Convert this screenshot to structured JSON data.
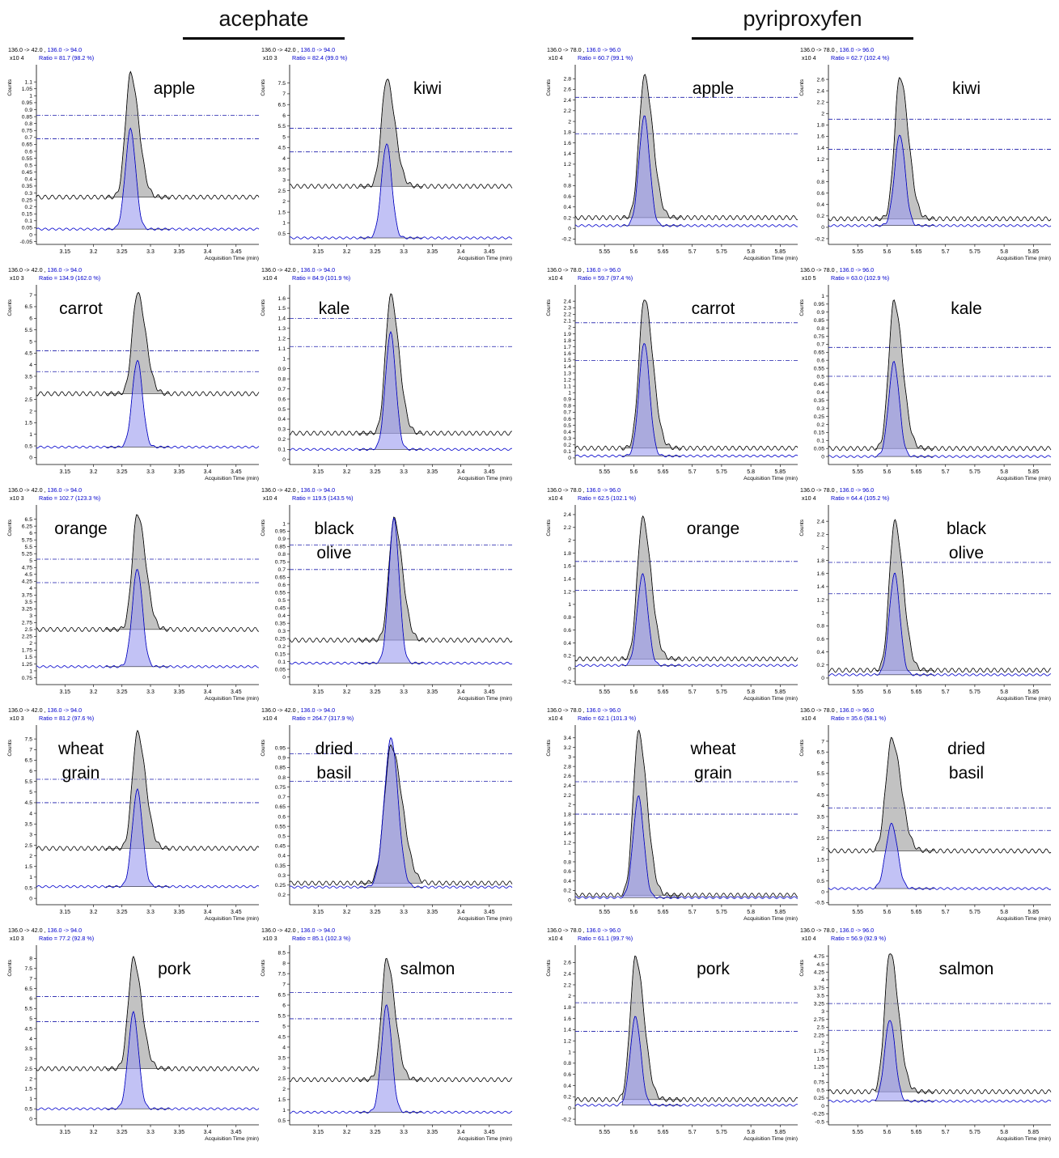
{
  "groups": [
    {
      "title": "acephate"
    },
    {
      "title": "pyriproxyfen"
    }
  ],
  "common": {
    "counts_label": "Counts",
    "xlabel": "Acquisition Time (min)",
    "colors": {
      "quant": "#000000",
      "qual": "#0000cc",
      "peak_fill": "#9a9a9a",
      "qual_fill": "#9999ee",
      "ref_line": "#1a1aaa"
    }
  },
  "chart_data": [
    {
      "type": "line",
      "group": "acephate",
      "sample": "apple",
      "header": "136.0 -> 42.0 , 136.0 -> 94.0",
      "ratio": "Ratio = 81.7 (98.2 %)",
      "multiplier": "x10 4",
      "xlim": [
        3.1,
        3.49
      ],
      "xticks": [
        3.15,
        3.2,
        3.25,
        3.3,
        3.35,
        3.4,
        3.45
      ],
      "ylim": [
        -0.07,
        1.2
      ],
      "yticks": [
        "-0.05",
        "0",
        "0.05",
        "0.1",
        "0.15",
        "0.2",
        "0.25",
        "0.3",
        "0.35",
        "0.4",
        "0.45",
        "0.5",
        "0.55",
        "0.6",
        "0.65",
        "0.7",
        "0.75",
        "0.8",
        "0.85",
        "0.9",
        "0.95",
        "1",
        "1.05",
        "1.1"
      ],
      "ref_lines": [
        0.86,
        0.69
      ],
      "peak_rt": 3.265,
      "peak_width": 0.009,
      "peak_top": 1.16,
      "quant_base": 0.27,
      "qual_top": 0.76,
      "qual_base": 0.04,
      "integ": [
        3.222,
        3.333
      ]
    },
    {
      "type": "line",
      "group": "acephate",
      "sample": "kiwi",
      "header": "136.0 -> 42.0 , 136.0 -> 94.0",
      "ratio": "Ratio = 82.4 (99.0 %)",
      "multiplier": "x10 3",
      "xlim": [
        3.1,
        3.49
      ],
      "xticks": [
        3.15,
        3.2,
        3.25,
        3.3,
        3.35,
        3.4,
        3.45
      ],
      "ylim": [
        0,
        8.2
      ],
      "yticks": [
        "0.5",
        "1",
        "1.5",
        "2",
        "2.5",
        "3",
        "3.5",
        "4",
        "4.5",
        "5",
        "5.5",
        "6",
        "6.5",
        "7",
        "7.5"
      ],
      "ref_lines": [
        5.4,
        4.3
      ],
      "peak_rt": 3.27,
      "peak_width": 0.009,
      "peak_top": 7.7,
      "quant_base": 2.7,
      "qual_top": 4.7,
      "qual_base": 0.3,
      "integ": [
        3.222,
        3.333
      ]
    },
    {
      "type": "line",
      "group": "pyriproxyfen",
      "sample": "apple",
      "header": "136.0 -> 78.0 , 136.0 -> 96.0",
      "ratio": "Ratio = 60.7 (99.1 %)",
      "multiplier": "x10 4",
      "xlim": [
        5.5,
        5.88
      ],
      "xticks": [
        5.55,
        5.6,
        5.65,
        5.7,
        5.75,
        5.8,
        5.85
      ],
      "ylim": [
        -0.3,
        3.0
      ],
      "yticks": [
        "-0.2",
        "0",
        "0.2",
        "0.4",
        "0.6",
        "0.8",
        "1",
        "1.2",
        "1.4",
        "1.6",
        "1.8",
        "2",
        "2.2",
        "2.4",
        "2.6",
        "2.8"
      ],
      "ref_lines": [
        2.45,
        1.77
      ],
      "peak_rt": 5.618,
      "peak_width": 0.009,
      "peak_top": 2.85,
      "quant_base": 0.2,
      "qual_top": 2.1,
      "qual_base": 0.05,
      "integ": [
        5.58,
        5.68
      ]
    },
    {
      "type": "line",
      "group": "pyriproxyfen",
      "sample": "kiwi",
      "header": "136.0 -> 78.0 , 136.0 -> 96.0",
      "ratio": "Ratio = 62.7 (102.4 %)",
      "multiplier": "x10 4",
      "xlim": [
        5.5,
        5.88
      ],
      "xticks": [
        5.55,
        5.6,
        5.65,
        5.7,
        5.75,
        5.8,
        5.85
      ],
      "ylim": [
        -0.3,
        2.8
      ],
      "yticks": [
        "-0.2",
        "0",
        "0.2",
        "0.4",
        "0.6",
        "0.8",
        "1",
        "1.2",
        "1.4",
        "1.6",
        "1.8",
        "2",
        "2.2",
        "2.4",
        "2.6"
      ],
      "ref_lines": [
        1.9,
        1.37
      ],
      "peak_rt": 5.622,
      "peak_width": 0.009,
      "peak_top": 2.65,
      "quant_base": 0.15,
      "qual_top": 1.63,
      "qual_base": 0.03,
      "integ": [
        5.58,
        5.68
      ]
    },
    {
      "type": "line",
      "group": "acephate",
      "sample": "carrot",
      "header": "136.0 -> 42.0 , 136.0 -> 94.0",
      "ratio": "Ratio = 134.9 (162.0 %)",
      "multiplier": "x10 3",
      "xlim": [
        3.1,
        3.49
      ],
      "xticks": [
        3.15,
        3.2,
        3.25,
        3.3,
        3.35,
        3.4,
        3.45
      ],
      "ylim": [
        -0.3,
        7.3
      ],
      "yticks": [
        "0",
        "0.5",
        "1",
        "1.5",
        "2",
        "2.5",
        "3",
        "3.5",
        "4",
        "4.5",
        "5",
        "5.5",
        "6",
        "6.5",
        "7"
      ],
      "ref_lines": [
        4.6,
        3.7
      ],
      "peak_rt": 3.277,
      "peak_width": 0.009,
      "peak_top": 7.1,
      "quant_base": 2.75,
      "qual_top": 4.2,
      "qual_base": 0.45,
      "integ": [
        3.222,
        3.333
      ]
    },
    {
      "type": "line",
      "group": "acephate",
      "sample": "kale",
      "header": "136.0 -> 42.0 , 136.0 -> 94.0",
      "ratio": "Ratio = 84.9 (101.9 %)",
      "multiplier": "x10 4",
      "xlim": [
        3.1,
        3.49
      ],
      "xticks": [
        3.15,
        3.2,
        3.25,
        3.3,
        3.35,
        3.4,
        3.45
      ],
      "ylim": [
        -0.05,
        1.7
      ],
      "yticks": [
        "0",
        "0.1",
        "0.2",
        "0.3",
        "0.4",
        "0.5",
        "0.6",
        "0.7",
        "0.8",
        "0.9",
        "1",
        "1.1",
        "1.2",
        "1.3",
        "1.4",
        "1.5",
        "1.6"
      ],
      "ref_lines": [
        1.4,
        1.12
      ],
      "peak_rt": 3.277,
      "peak_width": 0.009,
      "peak_top": 1.63,
      "quant_base": 0.26,
      "qual_top": 1.26,
      "qual_base": 0.1,
      "integ": [
        3.222,
        3.333
      ]
    },
    {
      "type": "line",
      "group": "pyriproxyfen",
      "sample": "carrot",
      "header": "136.0 -> 78.0 , 136.0 -> 96.0",
      "ratio": "Ratio = 59.7 (97.4 %)",
      "multiplier": "x10 4",
      "xlim": [
        5.5,
        5.88
      ],
      "xticks": [
        5.55,
        5.6,
        5.65,
        5.7,
        5.75,
        5.8,
        5.85
      ],
      "ylim": [
        -0.1,
        2.6
      ],
      "yticks": [
        "0",
        "0.1",
        "0.2",
        "0.3",
        "0.4",
        "0.5",
        "0.6",
        "0.7",
        "0.8",
        "0.9",
        "1",
        "1.1",
        "1.2",
        "1.3",
        "1.4",
        "1.5",
        "1.6",
        "1.7",
        "1.8",
        "1.9",
        "2",
        "2.1",
        "2.2",
        "2.3",
        "2.4"
      ],
      "ref_lines": [
        2.07,
        1.49
      ],
      "peak_rt": 5.618,
      "peak_width": 0.009,
      "peak_top": 2.45,
      "quant_base": 0.15,
      "qual_top": 1.77,
      "qual_base": 0.03,
      "integ": [
        5.58,
        5.68
      ]
    },
    {
      "type": "line",
      "group": "pyriproxyfen",
      "sample": "kale",
      "header": "136.0 -> 78.0 , 136.0 -> 96.0",
      "ratio": "Ratio = 63.0 (102.9 %)",
      "multiplier": "x10 5",
      "xlim": [
        5.5,
        5.88
      ],
      "xticks": [
        5.55,
        5.6,
        5.65,
        5.7,
        5.75,
        5.8,
        5.85
      ],
      "ylim": [
        -0.05,
        1.05
      ],
      "yticks": [
        "0",
        "0.05",
        "0.1",
        "0.15",
        "0.2",
        "0.25",
        "0.3",
        "0.35",
        "0.4",
        "0.45",
        "0.5",
        "0.55",
        "0.6",
        "0.65",
        "0.7",
        "0.75",
        "0.8",
        "0.85",
        "0.9",
        "0.95",
        "1"
      ],
      "ref_lines": [
        0.68,
        0.5
      ],
      "peak_rt": 5.612,
      "peak_width": 0.009,
      "peak_top": 0.97,
      "quant_base": 0.05,
      "qual_top": 0.59,
      "qual_base": 0.0,
      "integ": [
        5.58,
        5.68
      ]
    },
    {
      "type": "line",
      "group": "acephate",
      "sample": "orange",
      "header": "136.0 -> 42.0 , 136.0 -> 94.0",
      "ratio": "Ratio = 102.7 (123.3 %)",
      "multiplier": "x10 3",
      "xlim": [
        3.1,
        3.49
      ],
      "xticks": [
        3.15,
        3.2,
        3.25,
        3.3,
        3.35,
        3.4,
        3.45
      ],
      "ylim": [
        0.5,
        6.9
      ],
      "yticks": [
        "0.75",
        "1",
        "1.25",
        "1.5",
        "1.75",
        "2",
        "2.25",
        "2.5",
        "2.75",
        "3",
        "3.25",
        "3.5",
        "3.75",
        "4",
        "4.25",
        "4.5",
        "4.75",
        "5",
        "5.25",
        "5.5",
        "5.75",
        "6",
        "6.25",
        "6.5"
      ],
      "ref_lines": [
        5.05,
        4.2
      ],
      "peak_rt": 3.277,
      "peak_width": 0.009,
      "peak_top": 6.7,
      "quant_base": 2.5,
      "qual_top": 4.7,
      "qual_base": 1.15,
      "integ": [
        3.222,
        3.333
      ]
    },
    {
      "type": "line",
      "group": "acephate",
      "sample": "black olive",
      "header": "136.0 -> 42.0 , 136.0 -> 94.0",
      "ratio": "Ratio = 119.5 (143.5 %)",
      "multiplier": "x10 4",
      "xlim": [
        3.1,
        3.49
      ],
      "xticks": [
        3.15,
        3.2,
        3.25,
        3.3,
        3.35,
        3.4,
        3.45
      ],
      "ylim": [
        -0.05,
        1.1
      ],
      "yticks": [
        "0",
        "0.05",
        "0.1",
        "0.15",
        "0.2",
        "0.25",
        "0.3",
        "0.35",
        "0.4",
        "0.45",
        "0.5",
        "0.55",
        "0.6",
        "0.65",
        "0.7",
        "0.75",
        "0.8",
        "0.85",
        "0.9",
        "0.95",
        "1"
      ],
      "ref_lines": [
        0.86,
        0.7
      ],
      "peak_rt": 3.283,
      "peak_width": 0.009,
      "peak_top": 1.03,
      "quant_base": 0.24,
      "qual_top": 1.03,
      "qual_base": 0.09,
      "integ": [
        3.222,
        3.333
      ]
    },
    {
      "type": "line",
      "group": "pyriproxyfen",
      "sample": "orange",
      "header": "136.0 -> 78.0 , 136.0 -> 96.0",
      "ratio": "Ratio = 62.5 (102.1 %)",
      "multiplier": "x10 4",
      "xlim": [
        5.5,
        5.88
      ],
      "xticks": [
        5.55,
        5.6,
        5.65,
        5.7,
        5.75,
        5.8,
        5.85
      ],
      "ylim": [
        -0.25,
        2.5
      ],
      "yticks": [
        "-0.2",
        "0",
        "0.2",
        "0.4",
        "0.6",
        "0.8",
        "1",
        "1.2",
        "1.4",
        "1.6",
        "1.8",
        "2",
        "2.2",
        "2.4"
      ],
      "ref_lines": [
        1.67,
        1.22
      ],
      "peak_rt": 5.615,
      "peak_width": 0.009,
      "peak_top": 2.35,
      "quant_base": 0.15,
      "qual_top": 1.47,
      "qual_base": 0.05,
      "integ": [
        5.58,
        5.68
      ]
    },
    {
      "type": "line",
      "group": "pyriproxyfen",
      "sample": "black olive",
      "header": "136.0 -> 78.0 , 136.0 -> 96.0",
      "ratio": "Ratio = 64.4 (105.2 %)",
      "multiplier": "x10 4",
      "xlim": [
        5.5,
        5.88
      ],
      "xticks": [
        5.55,
        5.6,
        5.65,
        5.7,
        5.75,
        5.8,
        5.85
      ],
      "ylim": [
        -0.1,
        2.6
      ],
      "yticks": [
        "0",
        "0.2",
        "0.4",
        "0.6",
        "0.8",
        "1",
        "1.2",
        "1.4",
        "1.6",
        "1.8",
        "2",
        "2.2",
        "2.4"
      ],
      "ref_lines": [
        1.77,
        1.29
      ],
      "peak_rt": 5.613,
      "peak_width": 0.009,
      "peak_top": 2.4,
      "quant_base": 0.12,
      "qual_top": 1.6,
      "qual_base": 0.05,
      "integ": [
        5.58,
        5.68
      ]
    },
    {
      "type": "line",
      "group": "acephate",
      "sample": "wheat grain",
      "header": "136.0 -> 42.0 , 136.0 -> 94.0",
      "ratio": "Ratio = 81.2 (97.6 %)",
      "multiplier": "x10 3",
      "xlim": [
        3.1,
        3.49
      ],
      "xticks": [
        3.15,
        3.2,
        3.25,
        3.3,
        3.35,
        3.4,
        3.45
      ],
      "ylim": [
        -0.3,
        8.0
      ],
      "yticks": [
        "0",
        "0.5",
        "1",
        "1.5",
        "2",
        "2.5",
        "3",
        "3.5",
        "4",
        "4.5",
        "5",
        "5.5",
        "6",
        "6.5",
        "7",
        "7.5"
      ],
      "ref_lines": [
        5.6,
        4.5
      ],
      "peak_rt": 3.277,
      "peak_width": 0.009,
      "peak_top": 7.8,
      "quant_base": 2.35,
      "qual_top": 5.1,
      "qual_base": 0.55,
      "integ": [
        3.222,
        3.333
      ]
    },
    {
      "type": "line",
      "group": "acephate",
      "sample": "dried basil",
      "header": "136.0 -> 42.0 , 136.0 -> 94.0",
      "ratio": "Ratio = 264.7 (317.9 %)",
      "multiplier": "x10 4",
      "xlim": [
        3.1,
        3.49
      ],
      "xticks": [
        3.15,
        3.2,
        3.25,
        3.3,
        3.35,
        3.4,
        3.45
      ],
      "ylim": [
        0.15,
        1.05
      ],
      "yticks": [
        "0.2",
        "0.25",
        "0.3",
        "0.35",
        "0.4",
        "0.45",
        "0.5",
        "0.55",
        "0.6",
        "0.65",
        "0.7",
        "0.75",
        "0.8",
        "0.85",
        "0.9",
        "0.95"
      ],
      "ref_lines": [
        0.92,
        0.78
      ],
      "peak_rt": 3.278,
      "peak_width": 0.012,
      "peak_top": 0.96,
      "quant_base": 0.26,
      "qual_top": 1.0,
      "qual_base": 0.24,
      "integ": [
        3.222,
        3.333
      ]
    },
    {
      "type": "line",
      "group": "pyriproxyfen",
      "sample": "wheat grain",
      "header": "136.0 -> 78.0 , 136.0 -> 96.0",
      "ratio": "Ratio = 62.1 (101.3 %)",
      "multiplier": "x10 4",
      "xlim": [
        5.5,
        5.88
      ],
      "xticks": [
        5.55,
        5.6,
        5.65,
        5.7,
        5.75,
        5.8,
        5.85
      ],
      "ylim": [
        -0.1,
        3.6
      ],
      "yticks": [
        "0",
        "0.2",
        "0.4",
        "0.6",
        "0.8",
        "1",
        "1.2",
        "1.4",
        "1.6",
        "1.8",
        "2",
        "2.2",
        "2.4",
        "2.6",
        "2.8",
        "3",
        "3.2",
        "3.4"
      ],
      "ref_lines": [
        2.48,
        1.8
      ],
      "peak_rt": 5.608,
      "peak_width": 0.009,
      "peak_top": 3.52,
      "quant_base": 0.1,
      "qual_top": 2.17,
      "qual_base": 0.05,
      "integ": [
        5.58,
        5.68
      ]
    },
    {
      "type": "line",
      "group": "pyriproxyfen",
      "sample": "dried basil",
      "header": "136.0 -> 78.0 , 136.0 -> 96.0",
      "ratio": "Ratio = 35.6 (58.1 %)",
      "multiplier": "x10 4",
      "xlim": [
        5.5,
        5.88
      ],
      "xticks": [
        5.55,
        5.6,
        5.65,
        5.7,
        5.75,
        5.8,
        5.85
      ],
      "ylim": [
        -0.6,
        7.6
      ],
      "yticks": [
        "-0.5",
        "0",
        "0.5",
        "1",
        "1.5",
        "2",
        "2.5",
        "3",
        "3.5",
        "4",
        "4.5",
        "5",
        "5.5",
        "6",
        "6.5",
        "7"
      ],
      "ref_lines": [
        3.9,
        2.85
      ],
      "peak_rt": 5.608,
      "peak_width": 0.01,
      "peak_top": 7.1,
      "quant_base": 1.9,
      "qual_top": 3.15,
      "qual_base": 0.15,
      "integ": [
        5.58,
        5.68
      ]
    },
    {
      "type": "line",
      "group": "acephate",
      "sample": "pork",
      "header": "136.0 -> 42.0 , 136.0 -> 94.0",
      "ratio": "Ratio = 77.2 (92.8 %)",
      "multiplier": "x10 3",
      "xlim": [
        3.1,
        3.49
      ],
      "xticks": [
        3.15,
        3.2,
        3.25,
        3.3,
        3.35,
        3.4,
        3.45
      ],
      "ylim": [
        -0.3,
        8.5
      ],
      "yticks": [
        "0",
        "0.5",
        "1",
        "1.5",
        "2",
        "2.5",
        "3",
        "3.5",
        "4",
        "4.5",
        "5",
        "5.5",
        "6",
        "6.5",
        "7",
        "7.5",
        "8"
      ],
      "ref_lines": [
        6.1,
        4.85
      ],
      "peak_rt": 3.27,
      "peak_width": 0.009,
      "peak_top": 8.0,
      "quant_base": 2.5,
      "qual_top": 5.3,
      "qual_base": 0.5,
      "integ": [
        3.222,
        3.333
      ]
    },
    {
      "type": "line",
      "group": "acephate",
      "sample": "salmon",
      "header": "136.0 -> 42.0 , 136.0 -> 94.0",
      "ratio": "Ratio = 85.1 (102.3 %)",
      "multiplier": "x10 3",
      "xlim": [
        3.1,
        3.49
      ],
      "xticks": [
        3.15,
        3.2,
        3.25,
        3.3,
        3.35,
        3.4,
        3.45
      ],
      "ylim": [
        0.3,
        8.7
      ],
      "yticks": [
        "0.5",
        "1",
        "1.5",
        "2",
        "2.5",
        "3",
        "3.5",
        "4",
        "4.5",
        "5",
        "5.5",
        "6",
        "6.5",
        "7",
        "7.5",
        "8",
        "8.5"
      ],
      "ref_lines": [
        6.6,
        5.35
      ],
      "peak_rt": 3.27,
      "peak_width": 0.009,
      "peak_top": 8.2,
      "quant_base": 2.45,
      "qual_top": 6.0,
      "qual_base": 0.9,
      "integ": [
        3.222,
        3.333
      ]
    },
    {
      "type": "line",
      "group": "pyriproxyfen",
      "sample": "pork",
      "header": "136.0 -> 78.0 , 136.0 -> 96.0",
      "ratio": "Ratio = 61.1 (99.7 %)",
      "multiplier": "x10 4",
      "xlim": [
        5.5,
        5.88
      ],
      "xticks": [
        5.55,
        5.6,
        5.65,
        5.7,
        5.75,
        5.8,
        5.85
      ],
      "ylim": [
        -0.3,
        2.85
      ],
      "yticks": [
        "-0.2",
        "0",
        "0.2",
        "0.4",
        "0.6",
        "0.8",
        "1",
        "1.2",
        "1.4",
        "1.6",
        "1.8",
        "2",
        "2.2",
        "2.4",
        "2.6"
      ],
      "ref_lines": [
        1.88,
        1.37
      ],
      "peak_rt": 5.603,
      "peak_width": 0.009,
      "peak_top": 2.7,
      "quant_base": 0.15,
      "qual_top": 1.63,
      "qual_base": 0.05,
      "integ": [
        5.58,
        5.68
      ]
    },
    {
      "type": "line",
      "group": "pyriproxyfen",
      "sample": "salmon",
      "header": "136.0 -> 78.0 , 136.0 -> 96.0",
      "ratio": "Ratio = 56.9 (92.9 %)",
      "multiplier": "x10 4",
      "xlim": [
        5.5,
        5.88
      ],
      "xticks": [
        5.55,
        5.6,
        5.65,
        5.7,
        5.75,
        5.8,
        5.85
      ],
      "ylim": [
        -0.6,
        5.0
      ],
      "yticks": [
        "-0.5",
        "-0.25",
        "0",
        "0.25",
        "0.5",
        "0.75",
        "1",
        "1.25",
        "1.5",
        "1.75",
        "2",
        "2.25",
        "2.5",
        "2.75",
        "3",
        "3.25",
        "3.5",
        "3.75",
        "4",
        "4.25",
        "4.5",
        "4.75"
      ],
      "ref_lines": [
        3.25,
        2.4
      ],
      "peak_rt": 5.605,
      "peak_width": 0.009,
      "peak_top": 4.9,
      "quant_base": 0.45,
      "qual_top": 2.75,
      "qual_base": 0.15,
      "integ": [
        5.58,
        5.68
      ]
    }
  ]
}
